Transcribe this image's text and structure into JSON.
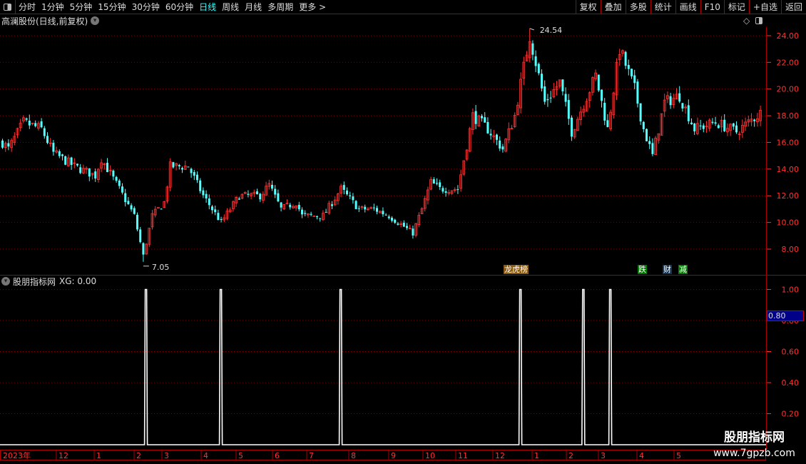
{
  "toolbar": {
    "periods": [
      "分时",
      "1分钟",
      "5分钟",
      "15分钟",
      "30分钟",
      "60分钟",
      "日线",
      "周线",
      "月线",
      "多周期",
      "更多 >"
    ],
    "active_period": "日线",
    "buttons": [
      "复权",
      "叠加",
      "多股",
      "统计",
      "画线",
      "F10",
      "标记",
      "+自选",
      "返回"
    ]
  },
  "main": {
    "title": "高澜股份(日线,前复权)",
    "price_axis": [
      "24.00",
      "22.00",
      "20.00",
      "18.00",
      "16.00",
      "14.00",
      "12.00",
      "10.00",
      "8.00"
    ],
    "high_label": "24.54",
    "low_label": "7.05",
    "tags": [
      {
        "text": "龙虎榜",
        "short": "榜",
        "bg": "#8a5a10"
      },
      {
        "text": "跌",
        "short": "跌",
        "bg": "#070"
      },
      {
        "text": "财",
        "short": "财",
        "bg": "#135"
      },
      {
        "text": "减",
        "short": "减",
        "bg": "#070"
      }
    ],
    "colors": {
      "up": "#ff3232",
      "down": "#54ffff",
      "axis": "#ff3232",
      "grid": "#800000"
    }
  },
  "indicator": {
    "title": "股朋指标网",
    "value_label": "XG: 0.00",
    "axis": [
      "1.00",
      "0.80",
      "0.60",
      "0.40",
      "0.20"
    ],
    "cursor_value": "0.80"
  },
  "date_axis": [
    "2023年",
    "12",
    "1",
    "2",
    "3",
    "4",
    "5",
    "6",
    "7",
    "8",
    "9",
    "10",
    "11",
    "12",
    "1",
    "2",
    "3",
    "4",
    "5"
  ],
  "watermark": {
    "line1": "股朋指标网",
    "line2": "www.7gpzb.com"
  },
  "chart_data": {
    "type": "candlestick",
    "price_keypoints_by_bar": [
      [
        0,
        16
      ],
      [
        2,
        15.5
      ],
      [
        7,
        17.5
      ],
      [
        13,
        17
      ],
      [
        17,
        15.2
      ],
      [
        24,
        14.2
      ],
      [
        31,
        13.5
      ],
      [
        33,
        14.8
      ],
      [
        39,
        12.5
      ],
      [
        44,
        10.5
      ],
      [
        47,
        7.5
      ],
      [
        50,
        10.5
      ],
      [
        54,
        11.5
      ],
      [
        56,
        14.2
      ],
      [
        62,
        14.2
      ],
      [
        67,
        12
      ],
      [
        73,
        10
      ],
      [
        79,
        12
      ],
      [
        86,
        12
      ],
      [
        89,
        12.8
      ],
      [
        93,
        11
      ],
      [
        98,
        11.5
      ],
      [
        100,
        10.5
      ],
      [
        107,
        10.5
      ],
      [
        113,
        12.5
      ],
      [
        119,
        11
      ],
      [
        124,
        11
      ],
      [
        129,
        10.5
      ],
      [
        137,
        9.2
      ],
      [
        140,
        11
      ],
      [
        143,
        13
      ],
      [
        146,
        12.5
      ],
      [
        152,
        12.5
      ],
      [
        157,
        18
      ],
      [
        162,
        17
      ],
      [
        167,
        15.5
      ],
      [
        171,
        18
      ],
      [
        176,
        24
      ],
      [
        181,
        19
      ],
      [
        186,
        20.5
      ],
      [
        190,
        16.8
      ],
      [
        198,
        21
      ],
      [
        202,
        17
      ],
      [
        206,
        23
      ],
      [
        211,
        20
      ],
      [
        214,
        17
      ],
      [
        217,
        15
      ],
      [
        221,
        19
      ],
      [
        226,
        19.5
      ],
      [
        231,
        17
      ],
      [
        238,
        17.5
      ],
      [
        245,
        16.8
      ],
      [
        253,
        18.2
      ]
    ],
    "high": 24.54,
    "low": 7.05,
    "xg_signal_bars": [
      48,
      73,
      113,
      173,
      194,
      203
    ],
    "xg_ylim": [
      0,
      1
    ],
    "price_ylim": [
      6.5,
      25
    ]
  }
}
